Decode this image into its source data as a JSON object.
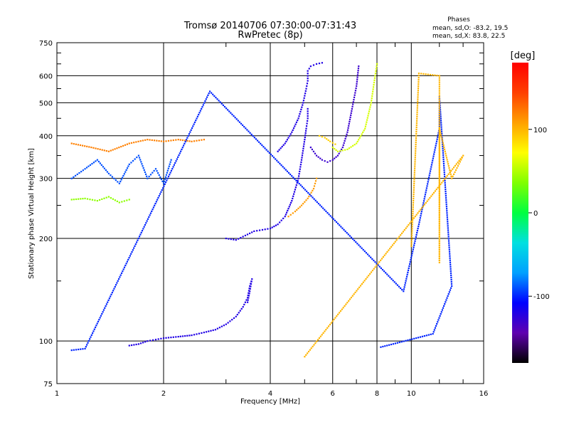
{
  "chart_data": {
    "type": "scatter",
    "title": "Tromsø 20140706 07:30:00-07:31:43",
    "subtitle": "RwPretec (8p)",
    "xlabel": "Frequency [MHz]",
    "ylabel": "Stationary phase Virtual Height [km]",
    "x_scale": "log",
    "y_scale": "log",
    "xlim": [
      1,
      16
    ],
    "ylim": [
      75,
      750
    ],
    "x_ticks": [
      "1",
      "2",
      "4",
      "6",
      "8",
      "10",
      "16"
    ],
    "y_ticks": [
      "75",
      "100",
      "200",
      "300",
      "400",
      "500",
      "600",
      "750"
    ],
    "grid": true,
    "phases": {
      "title": "Phases",
      "line1": "mean, sd,O: -83.2, 19.5",
      "line2": "mean, sd,X:  83.8, 22.5"
    },
    "colorbar": {
      "label": "[deg]",
      "tick_labels": [
        "100",
        "0",
        "-100"
      ],
      "tick_values": [
        100,
        0,
        -100
      ],
      "range": [
        -180,
        180
      ],
      "colors": [
        "#000000",
        "#6000b0",
        "#0000ff",
        "#00a0ff",
        "#00e0e0",
        "#00ff40",
        "#80ff00",
        "#ffff00",
        "#ffa000",
        "#ff4000",
        "#ff0000"
      ]
    },
    "traces": [
      {
        "name": "",
        "phase": -120,
        "points": [
          [
            1.6,
            97
          ],
          [
            1.7,
            98
          ],
          [
            1.8,
            100
          ],
          [
            1.9,
            101
          ],
          [
            2.0,
            102
          ],
          [
            2.2,
            103
          ],
          [
            2.4,
            104
          ],
          [
            2.6,
            106
          ],
          [
            2.8,
            108
          ],
          [
            3.0,
            112
          ],
          [
            3.2,
            118
          ],
          [
            3.35,
            126
          ],
          [
            3.45,
            134
          ],
          [
            3.5,
            145
          ],
          [
            3.55,
            152
          ],
          [
            3.5,
            140
          ],
          [
            3.45,
            130
          ]
        ]
      },
      {
        "name": "",
        "phase": -120,
        "points": [
          [
            3.0,
            200
          ],
          [
            3.2,
            198
          ],
          [
            3.4,
            204
          ],
          [
            3.6,
            210
          ],
          [
            3.8,
            212
          ],
          [
            4.0,
            214
          ],
          [
            4.2,
            220
          ],
          [
            4.4,
            232
          ],
          [
            4.6,
            258
          ],
          [
            4.8,
            300
          ],
          [
            4.9,
            340
          ],
          [
            5.0,
            390
          ],
          [
            5.05,
            420
          ],
          [
            5.1,
            450
          ],
          [
            5.1,
            480
          ]
        ]
      },
      {
        "name": "",
        "phase": -120,
        "points": [
          [
            4.2,
            360
          ],
          [
            4.4,
            380
          ],
          [
            4.6,
            410
          ],
          [
            4.8,
            450
          ],
          [
            4.95,
            500
          ],
          [
            5.05,
            550
          ],
          [
            5.1,
            580
          ],
          [
            5.1,
            620
          ],
          [
            5.2,
            640
          ],
          [
            5.4,
            650
          ],
          [
            5.6,
            655
          ]
        ]
      },
      {
        "name": "",
        "phase": -130,
        "points": [
          [
            5.2,
            370
          ],
          [
            5.4,
            350
          ],
          [
            5.6,
            340
          ],
          [
            5.8,
            335
          ],
          [
            6.0,
            340
          ],
          [
            6.2,
            350
          ],
          [
            6.4,
            370
          ],
          [
            6.6,
            410
          ],
          [
            6.8,
            480
          ],
          [
            7.0,
            560
          ],
          [
            7.1,
            640
          ]
        ]
      },
      {
        "name": "",
        "phase": 110,
        "points": [
          [
            4.5,
            232
          ],
          [
            4.7,
            240
          ],
          [
            4.9,
            250
          ],
          [
            5.1,
            262
          ],
          [
            5.3,
            280
          ],
          [
            5.4,
            300
          ]
        ]
      },
      {
        "name": "",
        "phase": 60,
        "points": [
          [
            6.0,
            370
          ],
          [
            6.2,
            360
          ],
          [
            6.6,
            365
          ],
          [
            7.0,
            380
          ],
          [
            7.4,
            420
          ],
          [
            7.7,
            500
          ],
          [
            7.9,
            600
          ],
          [
            8.0,
            650
          ]
        ]
      },
      {
        "name": "",
        "phase": 90,
        "points": [
          [
            5.5,
            400
          ],
          [
            5.7,
            395
          ],
          [
            5.9,
            385
          ],
          [
            6.1,
            378
          ]
        ]
      },
      {
        "name": "",
        "phase": -90,
        "points": [
          [
            1.1,
            300
          ],
          [
            1.2,
            320
          ],
          [
            1.3,
            340
          ],
          [
            1.4,
            310
          ],
          [
            1.5,
            290
          ],
          [
            1.6,
            330
          ],
          [
            1.7,
            350
          ],
          [
            1.8,
            300
          ],
          [
            1.9,
            320
          ],
          [
            2.0,
            290
          ],
          [
            2.1,
            340
          ]
        ]
      },
      {
        "name": "",
        "phase": 120,
        "points": [
          [
            1.1,
            380
          ],
          [
            1.25,
            370
          ],
          [
            1.4,
            360
          ],
          [
            1.6,
            380
          ],
          [
            1.8,
            390
          ],
          [
            2.0,
            385
          ],
          [
            2.2,
            390
          ],
          [
            2.4,
            385
          ],
          [
            2.6,
            390
          ]
        ]
      },
      {
        "name": "",
        "phase": 40,
        "points": [
          [
            1.1,
            260
          ],
          [
            1.2,
            262
          ],
          [
            1.3,
            258
          ],
          [
            1.4,
            265
          ],
          [
            1.5,
            255
          ],
          [
            1.6,
            260
          ]
        ]
      },
      {
        "name": "",
        "phase": -100,
        "points": [
          [
            1.1,
            94
          ],
          [
            1.2,
            95
          ],
          [
            2.7,
            540
          ],
          [
            9.5,
            140
          ],
          [
            10.5,
            220
          ],
          [
            12.0,
            420
          ],
          [
            12.0,
            520
          ],
          [
            13.0,
            145
          ],
          [
            11.5,
            105
          ],
          [
            8.2,
            96
          ]
        ]
      },
      {
        "name": "",
        "phase": 100,
        "points": [
          [
            10.0,
            190
          ],
          [
            10.5,
            610
          ],
          [
            12.0,
            600
          ],
          [
            12.0,
            170
          ],
          [
            12.0,
            420
          ],
          [
            13.0,
            300
          ],
          [
            14.0,
            350
          ],
          [
            5.0,
            90
          ]
        ]
      }
    ]
  }
}
